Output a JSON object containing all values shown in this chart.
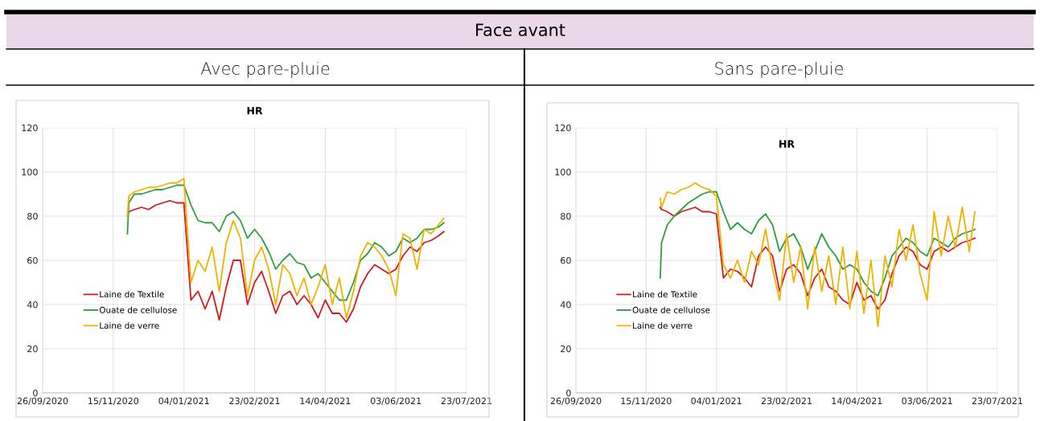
{
  "chart_data": [
    {
      "type": "line",
      "title": "HR",
      "subtitle": "Avec pare-pluie",
      "annotations": [
        "Face avant"
      ],
      "x": [
        "2020-11-25",
        "2020-11-26",
        "2020-11-30",
        "2020-12-05",
        "2020-12-10",
        "2020-12-15",
        "2020-12-20",
        "2020-12-25",
        "2020-12-30",
        "2021-01-04",
        "2021-01-09",
        "2021-01-14",
        "2021-01-19",
        "2021-01-24",
        "2021-01-29",
        "2021-02-03",
        "2021-02-08",
        "2021-02-13",
        "2021-02-18",
        "2021-02-23",
        "2021-02-28",
        "2021-03-05",
        "2021-03-10",
        "2021-03-15",
        "2021-03-20",
        "2021-03-25",
        "2021-03-30",
        "2021-04-04",
        "2021-04-09",
        "2021-04-14",
        "2021-04-19",
        "2021-04-24",
        "2021-04-29",
        "2021-05-04",
        "2021-05-09",
        "2021-05-14",
        "2021-05-19",
        "2021-05-24",
        "2021-05-29",
        "2021-06-03",
        "2021-06-08",
        "2021-06-13",
        "2021-06-18",
        "2021-06-23",
        "2021-06-28",
        "2021-07-03",
        "2021-07-07"
      ],
      "series": [
        {
          "name": "Laine de Textile",
          "color": "#d7191c",
          "values": [
            80,
            82,
            83,
            84,
            83,
            85,
            86,
            87,
            86,
            86,
            42,
            46,
            38,
            46,
            33,
            48,
            60,
            60,
            40,
            50,
            55,
            46,
            36,
            44,
            46,
            40,
            44,
            40,
            34,
            42,
            36,
            36,
            32,
            38,
            48,
            54,
            58,
            56,
            54,
            56,
            62,
            66,
            64,
            68,
            69,
            71,
            73
          ]
        },
        {
          "name": "Ouate de cellulose",
          "color": "#2e9e3e",
          "values": [
            72,
            86,
            90,
            90,
            91,
            92,
            92,
            93,
            94,
            94,
            85,
            78,
            77,
            77,
            73,
            80,
            82,
            78,
            70,
            74,
            70,
            64,
            56,
            60,
            63,
            59,
            58,
            52,
            54,
            50,
            46,
            42,
            42,
            50,
            60,
            63,
            68,
            66,
            62,
            64,
            70,
            68,
            70,
            74,
            74,
            75,
            77
          ]
        },
        {
          "name": "Laine de verre",
          "color": "#f2b200",
          "values": [
            80,
            89,
            91,
            92,
            93,
            93,
            94,
            95,
            95,
            97,
            50,
            60,
            55,
            66,
            46,
            68,
            78,
            70,
            44,
            60,
            66,
            56,
            40,
            58,
            54,
            44,
            52,
            40,
            48,
            58,
            40,
            52,
            34,
            46,
            62,
            68,
            66,
            62,
            56,
            44,
            72,
            70,
            56,
            74,
            72,
            76,
            79
          ]
        }
      ],
      "xlim": [
        "2020-09-26",
        "2021-07-23"
      ],
      "xticks": [
        {
          "value": "2020-09-26",
          "label": "26/09/2020"
        },
        {
          "value": "2020-11-15",
          "label": "15/11/2020"
        },
        {
          "value": "2021-01-04",
          "label": "04/01/2021"
        },
        {
          "value": "2021-02-23",
          "label": "23/02/2021"
        },
        {
          "value": "2021-04-14",
          "label": "14/04/2021"
        },
        {
          "value": "2021-06-03",
          "label": "03/06/2021"
        },
        {
          "value": "2021-07-23",
          "label": "23/07/2021"
        }
      ],
      "ylim": [
        0,
        120
      ],
      "yticks": [
        0,
        20,
        40,
        60,
        80,
        100,
        120
      ],
      "grid": true,
      "legend": "center left"
    },
    {
      "type": "line",
      "title": "HR",
      "subtitle": "Sans pare-pluie",
      "x": [
        "2020-11-25",
        "2020-11-26",
        "2020-11-30",
        "2020-12-05",
        "2020-12-10",
        "2020-12-15",
        "2020-12-20",
        "2020-12-25",
        "2020-12-30",
        "2021-01-04",
        "2021-01-09",
        "2021-01-14",
        "2021-01-19",
        "2021-01-24",
        "2021-01-29",
        "2021-02-03",
        "2021-02-08",
        "2021-02-13",
        "2021-02-18",
        "2021-02-23",
        "2021-02-28",
        "2021-03-05",
        "2021-03-10",
        "2021-03-15",
        "2021-03-20",
        "2021-03-25",
        "2021-03-30",
        "2021-04-04",
        "2021-04-09",
        "2021-04-14",
        "2021-04-19",
        "2021-04-24",
        "2021-04-29",
        "2021-05-04",
        "2021-05-09",
        "2021-05-14",
        "2021-05-19",
        "2021-05-24",
        "2021-05-29",
        "2021-06-03",
        "2021-06-08",
        "2021-06-13",
        "2021-06-18",
        "2021-06-23",
        "2021-06-28",
        "2021-07-03",
        "2021-07-07"
      ],
      "series": [
        {
          "name": "Laine de Textile",
          "color": "#d7191c",
          "values": [
            84,
            83,
            82,
            80,
            82,
            83,
            84,
            82,
            82,
            81,
            52,
            56,
            55,
            52,
            48,
            62,
            66,
            62,
            46,
            56,
            58,
            54,
            44,
            52,
            56,
            48,
            46,
            42,
            40,
            50,
            42,
            44,
            38,
            42,
            54,
            62,
            66,
            64,
            58,
            56,
            64,
            66,
            64,
            66,
            68,
            69,
            70
          ]
        },
        {
          "name": "Ouate de cellulose",
          "color": "#2e9e3e",
          "values": [
            52,
            68,
            76,
            80,
            83,
            86,
            88,
            90,
            91,
            91,
            82,
            74,
            77,
            74,
            72,
            78,
            81,
            76,
            64,
            70,
            72,
            66,
            56,
            64,
            72,
            66,
            62,
            56,
            58,
            56,
            50,
            46,
            44,
            52,
            62,
            66,
            70,
            68,
            64,
            62,
            70,
            68,
            66,
            70,
            72,
            73,
            74
          ]
        },
        {
          "name": "Laine de verre",
          "color": "#f2b200",
          "values": [
            88,
            84,
            91,
            90,
            92,
            93,
            95,
            93,
            92,
            89,
            58,
            52,
            60,
            50,
            64,
            58,
            74,
            56,
            42,
            72,
            50,
            66,
            38,
            66,
            46,
            62,
            40,
            66,
            38,
            64,
            36,
            60,
            30,
            62,
            48,
            74,
            60,
            76,
            54,
            42,
            82,
            62,
            80,
            66,
            84,
            64,
            82
          ]
        }
      ],
      "xlim": [
        "2020-09-26",
        "2021-07-23"
      ],
      "xticks": [
        {
          "value": "2020-09-26",
          "label": "26/09/2020"
        },
        {
          "value": "2020-11-15",
          "label": "15/11/2020"
        },
        {
          "value": "2021-01-04",
          "label": "04/01/2021"
        },
        {
          "value": "2021-02-23",
          "label": "23/02/2021"
        },
        {
          "value": "2021-04-14",
          "label": "14/04/2021"
        },
        {
          "value": "2021-06-03",
          "label": "03/06/2021"
        },
        {
          "value": "2021-07-23",
          "label": "23/07/2021"
        }
      ],
      "ylim": [
        0,
        120
      ],
      "yticks": [
        0,
        20,
        40,
        60,
        80,
        100,
        120
      ],
      "grid": true,
      "legend": "center left"
    }
  ]
}
